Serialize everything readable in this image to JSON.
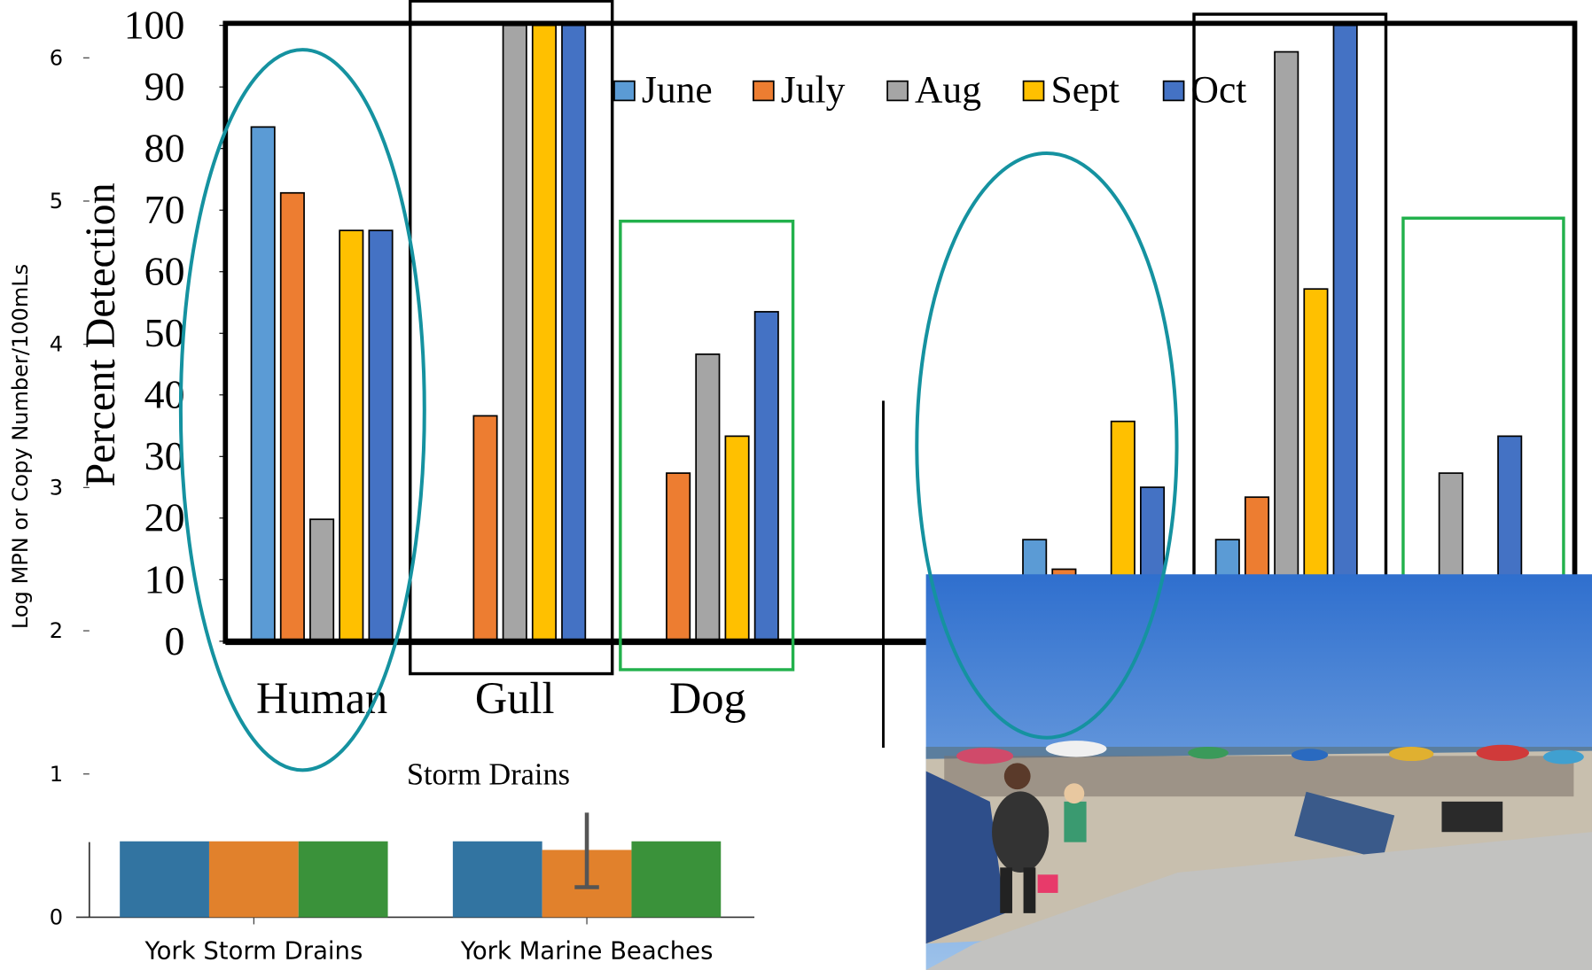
{
  "chart_data": [
    {
      "type": "bar",
      "ylabel": "Percent  Detection",
      "xlabel": "Storm Drains",
      "categories": [
        "Human",
        "Gull",
        "Dog",
        null,
        null,
        null
      ],
      "series": [
        {
          "name": "June",
          "color": "#5b9bd5",
          "values": [
            83.5,
            0,
            0,
            16.5,
            16.5,
            0
          ]
        },
        {
          "name": "July",
          "color": "#ed7d31",
          "values": [
            72.8,
            36.6,
            27.3,
            11.7,
            23.4,
            0
          ]
        },
        {
          "name": "Aug",
          "color": "#a5a5a5",
          "values": [
            19.8,
            100,
            46.6,
            0,
            95.7,
            27.3
          ]
        },
        {
          "name": "Sept",
          "color": "#ffc000",
          "values": [
            66.7,
            100,
            33.3,
            35.7,
            57.2,
            0
          ]
        },
        {
          "name": "Oct",
          "color": "#4472c4",
          "values": [
            66.7,
            100,
            53.5,
            25,
            100,
            33.3
          ]
        }
      ],
      "ylim": [
        0,
        100
      ],
      "yticks": [
        0,
        10,
        20,
        30,
        40,
        50,
        60,
        70,
        80,
        90,
        100
      ],
      "legend": "top"
    },
    {
      "type": "bar",
      "ylabel": "Log MPN or Copy Number/100mLs",
      "categories": [
        "York Storm Drains",
        "York Marine Beaches"
      ],
      "series": [
        {
          "color": "#3274a1",
          "values": [
            0.53,
            0.53
          ]
        },
        {
          "color": "#e1812c",
          "values": [
            0.53,
            0.47
          ],
          "errors": [
            null,
            0.26
          ]
        },
        {
          "color": "#3a923a",
          "values": [
            0.53,
            0.53
          ]
        }
      ],
      "ylim": [
        0,
        6
      ],
      "yticks": [
        0,
        1,
        2,
        3,
        4,
        5,
        6
      ]
    }
  ]
}
